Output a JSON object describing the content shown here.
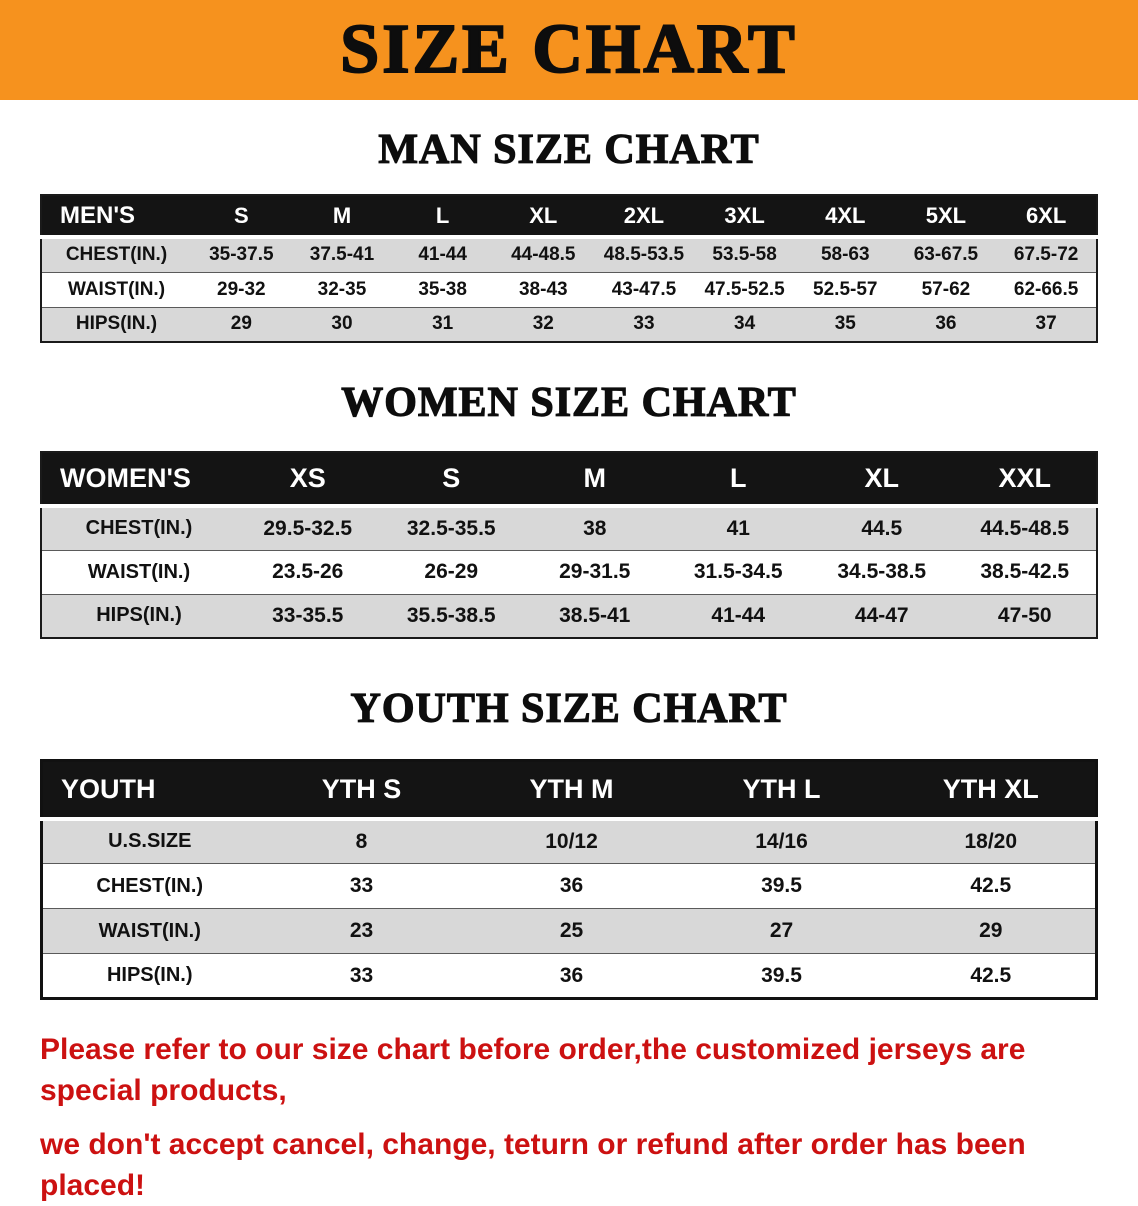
{
  "banner": {
    "title": "SIZE CHART"
  },
  "colors": {
    "banner_bg": "#F6921E",
    "header_bg": "#141414",
    "stripe": "#D8D8D8",
    "footer_text": "#CC1111"
  },
  "men": {
    "heading": "MAN SIZE CHART",
    "header": [
      "MEN'S",
      "S",
      "M",
      "L",
      "XL",
      "2XL",
      "3XL",
      "4XL",
      "5XL",
      "6XL"
    ],
    "rows": [
      [
        "CHEST(IN.)",
        "35-37.5",
        "37.5-41",
        "41-44",
        "44-48.5",
        "48.5-53.5",
        "53.5-58",
        "58-63",
        "63-67.5",
        "67.5-72"
      ],
      [
        "WAIST(IN.)",
        "29-32",
        "32-35",
        "35-38",
        "38-43",
        "43-47.5",
        "47.5-52.5",
        "52.5-57",
        "57-62",
        "62-66.5"
      ],
      [
        "HIPS(IN.)",
        "29",
        "30",
        "31",
        "32",
        "33",
        "34",
        "35",
        "36",
        "37"
      ]
    ]
  },
  "women": {
    "heading": "WOMEN SIZE CHART",
    "header": [
      "WOMEN'S",
      "XS",
      "S",
      "M",
      "L",
      "XL",
      "XXL"
    ],
    "rows": [
      [
        "CHEST(IN.)",
        "29.5-32.5",
        "32.5-35.5",
        "38",
        "41",
        "44.5",
        "44.5-48.5"
      ],
      [
        "WAIST(IN.)",
        "23.5-26",
        "26-29",
        "29-31.5",
        "31.5-34.5",
        "34.5-38.5",
        "38.5-42.5"
      ],
      [
        "HIPS(IN.)",
        "33-35.5",
        "35.5-38.5",
        "38.5-41",
        "41-44",
        "44-47",
        "47-50"
      ]
    ]
  },
  "youth": {
    "heading": "YOUTH SIZE CHART",
    "header": [
      "YOUTH",
      "YTH S",
      "YTH M",
      "YTH L",
      "YTH XL"
    ],
    "rows": [
      [
        "U.S.SIZE",
        "8",
        "10/12",
        "14/16",
        "18/20"
      ],
      [
        "CHEST(IN.)",
        "33",
        "36",
        "39.5",
        "42.5"
      ],
      [
        "WAIST(IN.)",
        "23",
        "25",
        "27",
        "29"
      ],
      [
        "HIPS(IN.)",
        "33",
        "36",
        "39.5",
        "42.5"
      ]
    ]
  },
  "footer": {
    "line1": "Please refer to our size chart before order,the customized jerseys are special products,",
    "line2": "we don't accept cancel, change, teturn or refund after order has been placed!"
  }
}
